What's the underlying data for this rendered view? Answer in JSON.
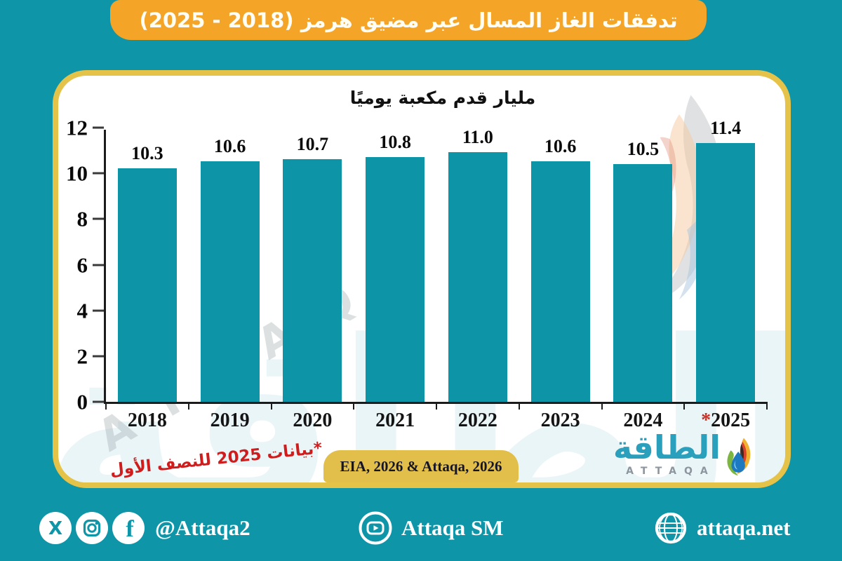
{
  "banner": {
    "title_main": "تدفقات الغاز المسال عبر مضيق هرمز",
    "title_range": "(2025 - 2018)"
  },
  "chart_data": {
    "type": "bar",
    "title": "مليار قدم مكعبة يوميًا",
    "categories": [
      "2018",
      "2019",
      "2020",
      "2021",
      "2022",
      "2023",
      "2024",
      "*2025"
    ],
    "values": [
      10.3,
      10.6,
      10.7,
      10.8,
      11.0,
      10.6,
      10.5,
      11.4
    ],
    "value_labels": [
      "10.3",
      "10.6",
      "10.7",
      "10.8",
      "11.0",
      "10.6",
      "10.5",
      "11.4"
    ],
    "ylim": [
      0,
      12
    ],
    "yticks": [
      12,
      10,
      8,
      6,
      4,
      2,
      0
    ],
    "bar_color": "#0d94a7",
    "grid": false,
    "legend": false,
    "xlabel": "",
    "ylabel": "مليار قدم مكعبة يوميًا"
  },
  "card": {
    "footnote": "*بيانات 2025 للنصف الأول",
    "source": "EIA, 2026 & Attaqa, 2026",
    "logo_arabic": "الطاقة",
    "logo_latin": "ATTAQA",
    "watermark_arabic": "الطاقة",
    "watermark_latin": "ATTAQA"
  },
  "footer": {
    "handle": "@Attaqa2",
    "youtube_label": "Attaqa SM",
    "website": "attaqa.net"
  },
  "colors": {
    "background": "#0e95a8",
    "banner_orange": "#f4a426",
    "gold_border": "#e5c349",
    "bar_teal": "#0d94a7",
    "footnote_red": "#cf1d1d",
    "logo_teal": "#2ba0bc",
    "logo_gray": "#8d959e",
    "axis_black": "#1b1b1b"
  }
}
